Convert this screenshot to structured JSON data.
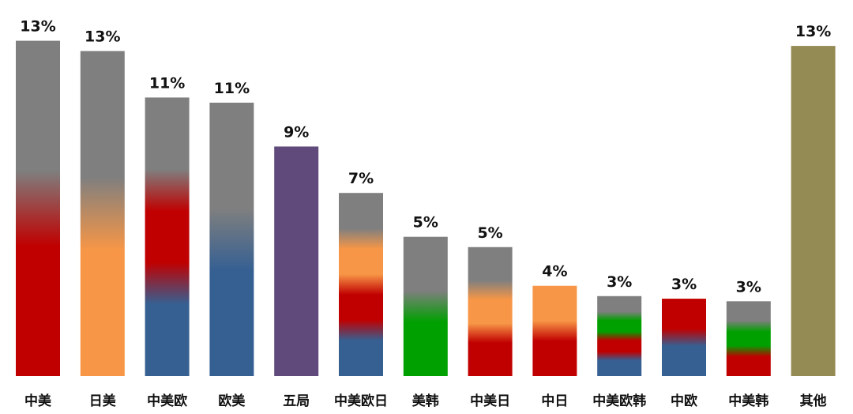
{
  "colors": {
    "gray": "#7f7f7f",
    "red": "#c00000",
    "orange": "#f79646",
    "blue": "#366092",
    "green": "#00a000",
    "purple": "#604a7b",
    "olive": "#948a54"
  },
  "chart_data": {
    "type": "bar",
    "title": "",
    "xlabel": "",
    "ylabel": "",
    "ylim": [
      0,
      13.6
    ],
    "grid": false,
    "legend": "none",
    "categories": [
      "中美",
      "日美",
      "中美欧",
      "欧美",
      "五局",
      "中美欧日",
      "美韩",
      "中美日",
      "中日",
      "中美欧韩",
      "中欧",
      "中美韩",
      "其他"
    ],
    "values": [
      13,
      13,
      11,
      11,
      9,
      7,
      5,
      5,
      4,
      3,
      3,
      3,
      13
    ],
    "value_labels": [
      "13%",
      "13%",
      "11%",
      "11%",
      "9%",
      "7%",
      "5%",
      "5%",
      "4%",
      "3%",
      "3%",
      "3%",
      "13%"
    ],
    "bar_heights": [
      13.0,
      12.6,
      10.8,
      10.6,
      8.9,
      7.1,
      5.4,
      5.0,
      3.5,
      3.1,
      3.0,
      2.9,
      12.8
    ],
    "bar_colors": [
      [
        "red",
        "gray"
      ],
      [
        "orange",
        "gray"
      ],
      [
        "blue",
        "red",
        "gray"
      ],
      [
        "blue",
        "gray"
      ],
      [
        "purple"
      ],
      [
        "blue",
        "red",
        "orange",
        "gray"
      ],
      [
        "green",
        "gray"
      ],
      [
        "red",
        "orange",
        "gray"
      ],
      [
        "red",
        "orange"
      ],
      [
        "blue",
        "red",
        "green",
        "gray"
      ],
      [
        "blue",
        "red"
      ],
      [
        "red",
        "green",
        "gray"
      ],
      [
        "olive"
      ]
    ]
  }
}
